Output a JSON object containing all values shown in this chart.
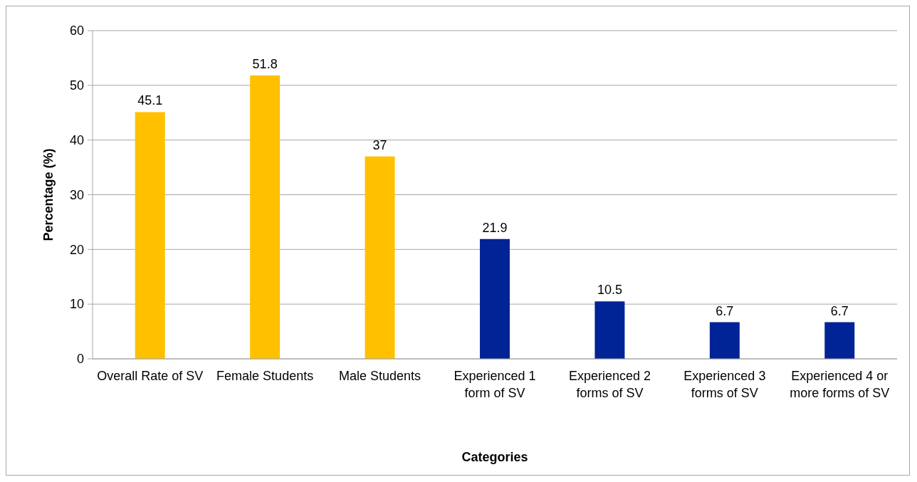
{
  "chart_data": {
    "type": "bar",
    "xlabel": "Categories",
    "ylabel": "Percentage (%)",
    "categories": [
      "Overall Rate of SV",
      "Female Students",
      "Male Students",
      "Experienced 1 form of SV",
      "Experienced 2 forms of SV",
      "Experienced 3 forms of SV",
      "Experienced 4 or more forms of SV"
    ],
    "values": [
      45.1,
      51.8,
      37,
      21.9,
      10.5,
      6.7,
      6.7
    ],
    "colors": [
      "#ffc000",
      "#ffc000",
      "#ffc000",
      "#002395",
      "#002395",
      "#002395",
      "#002395"
    ],
    "ylim": [
      0,
      60
    ],
    "yticks": [
      0,
      10,
      20,
      30,
      40,
      50,
      60
    ],
    "grid": "y",
    "data_labels": true
  }
}
